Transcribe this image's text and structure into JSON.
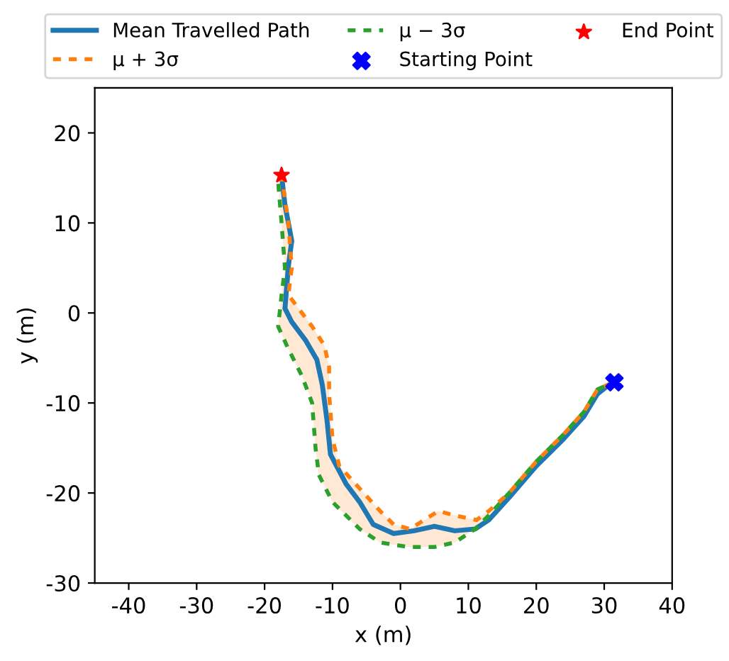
{
  "chart_data": {
    "type": "line",
    "xlabel": "x (m)",
    "ylabel": "y (m)",
    "xlim": [
      -45,
      40
    ],
    "xticks": [
      -40,
      -30,
      -20,
      -10,
      0,
      10,
      20,
      30,
      40
    ],
    "ylim": [
      -30,
      25
    ],
    "yticks": [
      -30,
      -20,
      -10,
      0,
      10,
      20
    ],
    "grid": false,
    "legend": "top",
    "series": [
      {
        "name": "Mean Travelled Path",
        "color": "#1f77b4",
        "line_style": "solid",
        "x": [
          31,
          29,
          27,
          24,
          20,
          16,
          13,
          11,
          8,
          5,
          2,
          -1,
          -4,
          -6,
          -8,
          -10.3,
          -10.8,
          -11.5,
          -12.3,
          -14,
          -16,
          -17,
          -16.5,
          -16,
          -17,
          -17.5
        ],
        "values": [
          -7.8,
          -9,
          -11.5,
          -14,
          -17,
          -20.5,
          -23,
          -24,
          -24.2,
          -23.7,
          -24.2,
          -24.5,
          -23.5,
          -21,
          -19,
          -15.7,
          -12,
          -8,
          -5.2,
          -3,
          -1,
          0.5,
          5.2,
          8,
          12,
          15.3
        ]
      },
      {
        "name": "μ + 3σ",
        "color": "#ff7f0e",
        "line_style": "dashed",
        "x": [
          31,
          29,
          27,
          24,
          20,
          16,
          13,
          11.2,
          8,
          5.6,
          3.5,
          1.4,
          -1,
          -3,
          -6,
          -9,
          -10,
          -10.5,
          -10.5,
          -11.2,
          -13,
          -15.5,
          -16.5,
          -16,
          -16.5,
          -17.5
        ],
        "values": [
          -7.8,
          -8.5,
          -11,
          -13.5,
          -16.5,
          -20,
          -22,
          -23,
          -22.5,
          -22,
          -23,
          -24,
          -23.5,
          -22,
          -19.5,
          -17,
          -14,
          -9,
          -6,
          -3.6,
          -1.5,
          1,
          2,
          5,
          10,
          15.3
        ]
      },
      {
        "name": "μ − 3σ",
        "color": "#2ca02c",
        "line_style": "dashed",
        "x": [
          31,
          29,
          27,
          24,
          20,
          16,
          13,
          11,
          8,
          5,
          1.2,
          -3,
          -6,
          -10,
          -12,
          -12.5,
          -13,
          -14.5,
          -16.5,
          -18,
          -17.5,
          -17,
          -17.5,
          -18
        ],
        "values": [
          -7.8,
          -8.5,
          -11,
          -13.5,
          -16.5,
          -20,
          -22.5,
          -24,
          -25.5,
          -26,
          -26,
          -25.5,
          -24,
          -21,
          -18,
          -15,
          -10,
          -7,
          -4,
          -1.5,
          2,
          5,
          10,
          14.5
        ]
      },
      {
        "name": "Starting Point",
        "type": "scatter",
        "color": "#0000ff",
        "marker": "cross",
        "x": [
          31.5
        ],
        "values": [
          -7.7
        ]
      },
      {
        "name": "End Point",
        "type": "scatter",
        "color": "#ff0000",
        "marker": "star",
        "x": [
          -17.5
        ],
        "values": [
          15.3
        ]
      }
    ]
  }
}
